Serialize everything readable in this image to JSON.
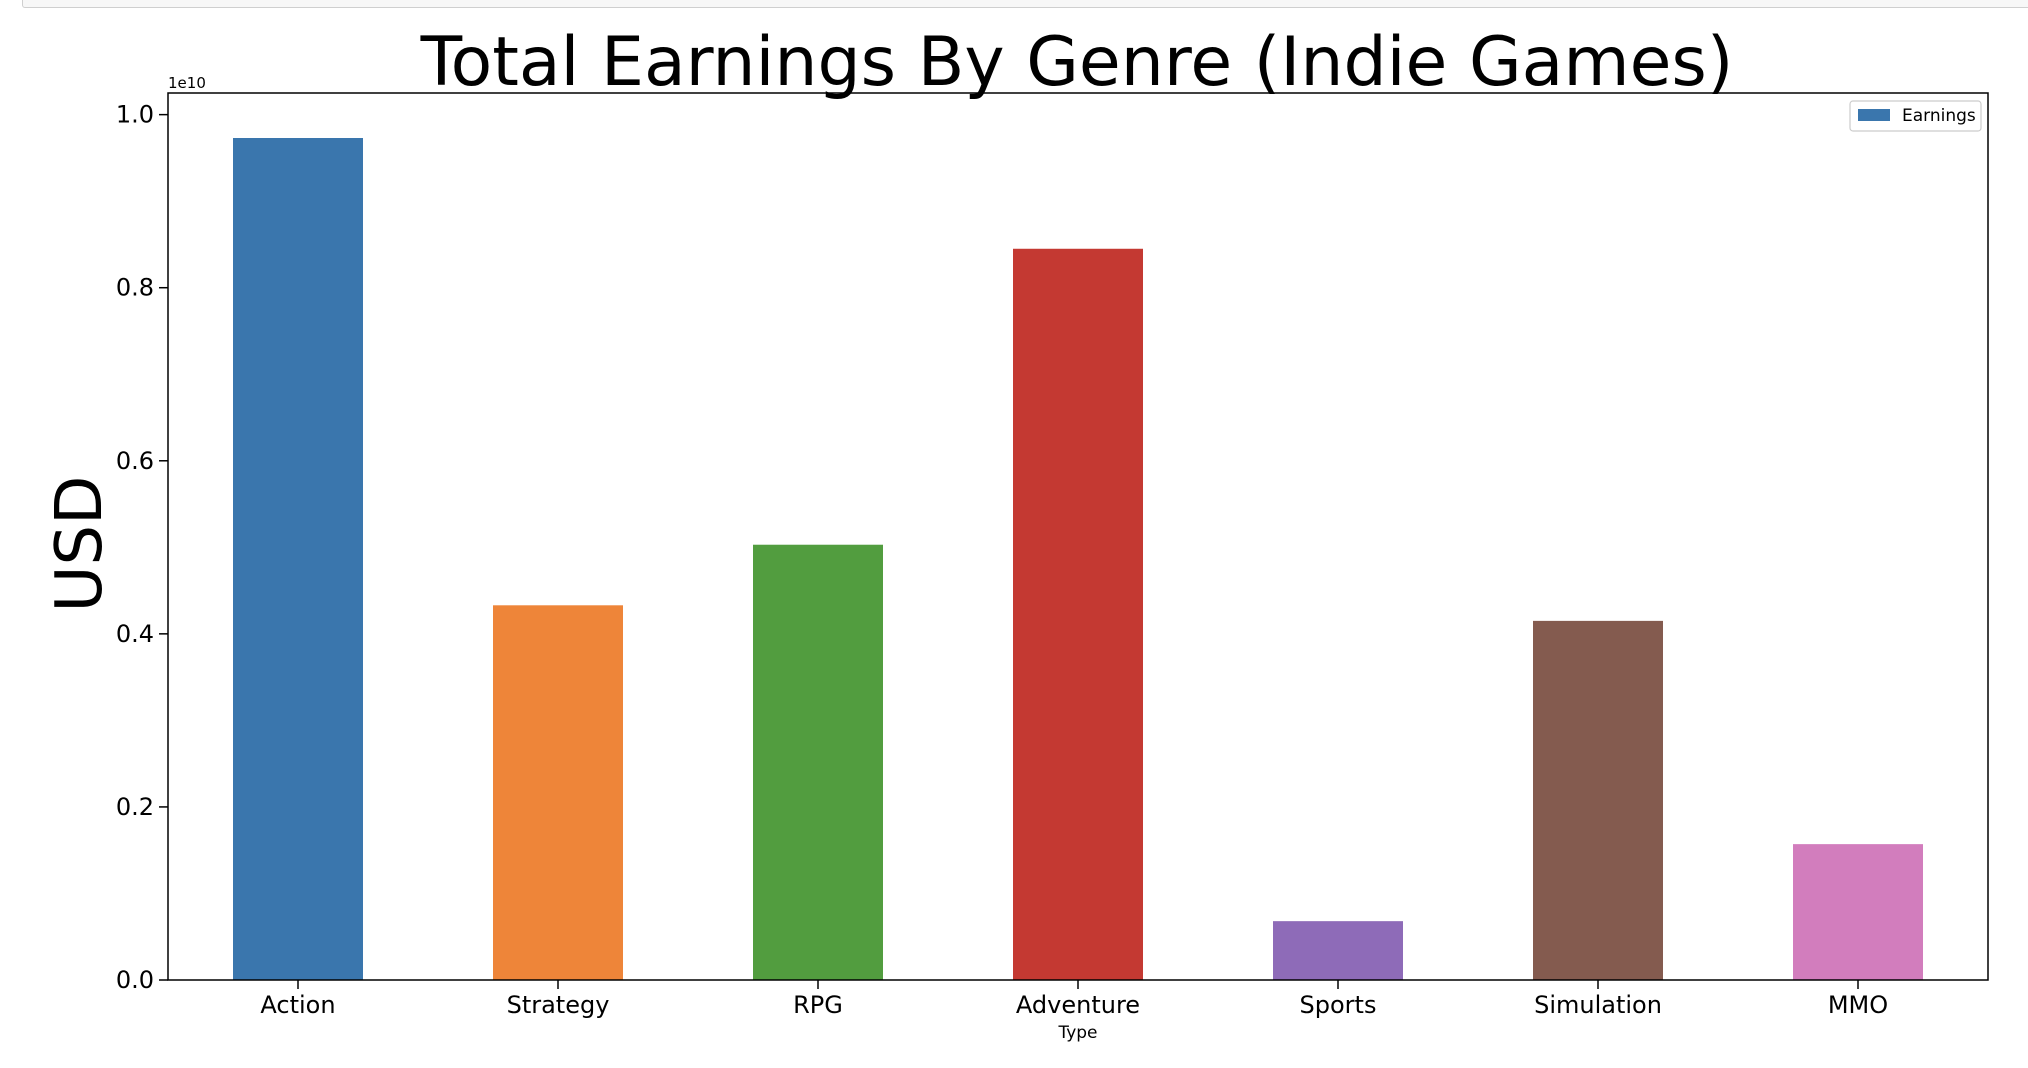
{
  "chart_data": {
    "type": "bar",
    "title": "Total Earnings By Genre (Indie Games)",
    "xlabel": "Type",
    "ylabel": "USD",
    "scale_label": "1e10",
    "scale_factor": 10000000000,
    "categories": [
      "Action",
      "Strategy",
      "RPG",
      "Adventure",
      "Sports",
      "Simulation",
      "MMO"
    ],
    "series": [
      {
        "name": "Earnings",
        "values": [
          9730000000,
          4330000000,
          5030000000,
          8450000000,
          680000000,
          4150000000,
          1570000000
        ]
      }
    ],
    "colors": [
      "#3a76ad",
      "#ee8539",
      "#529d3f",
      "#c43932",
      "#8e6bb8",
      "#845b4f",
      "#d27dbd"
    ],
    "ylim": [
      0,
      1.025
    ],
    "yticks": [
      "0.0",
      "0.2",
      "0.4",
      "0.6",
      "0.8",
      "1.0"
    ],
    "legend": {
      "position": "top-right",
      "label": "Earnings"
    },
    "grid": false
  }
}
